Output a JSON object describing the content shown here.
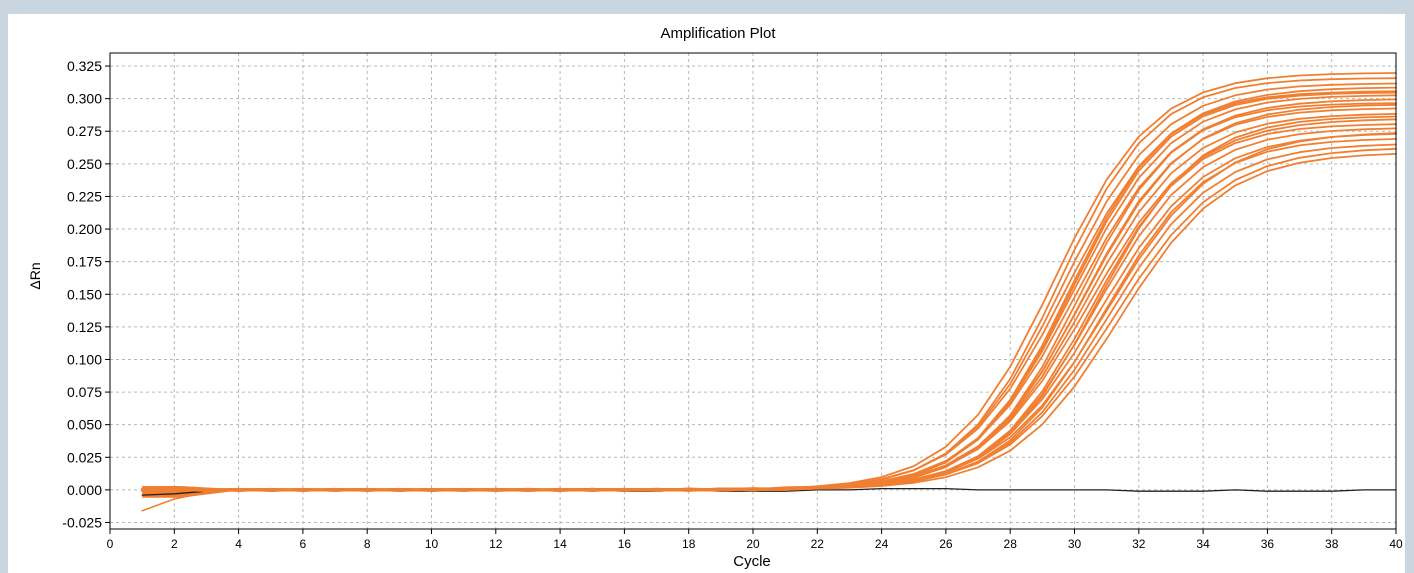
{
  "chart_data": {
    "type": "line",
    "title": "Amplification Plot",
    "xlabel": "Cycle",
    "ylabel": "ΔRn",
    "xlim": [
      0,
      40
    ],
    "ylim": [
      -0.03,
      0.335
    ],
    "grid": true,
    "x_ticks": [
      0,
      2,
      4,
      6,
      8,
      10,
      12,
      14,
      16,
      18,
      20,
      22,
      24,
      26,
      28,
      30,
      32,
      34,
      36,
      38,
      40
    ],
    "x_tick_labels": [
      "0",
      "2",
      "4",
      "6",
      "8",
      "10",
      "12",
      "14",
      "16",
      "18",
      "20",
      "22",
      "24",
      "26",
      "28",
      "30",
      "32",
      "34",
      "36",
      "38",
      "40"
    ],
    "y_ticks": [
      -0.025,
      0.0,
      0.025,
      0.05,
      0.075,
      0.1,
      0.125,
      0.15,
      0.175,
      0.2,
      0.225,
      0.25,
      0.275,
      0.3,
      0.325
    ],
    "y_tick_labels": [
      "-0.025",
      "0.000",
      "0.025",
      "0.050",
      "0.075",
      "0.100",
      "0.125",
      "0.150",
      "0.175",
      "0.200",
      "0.225",
      "0.250",
      "0.275",
      "0.300",
      "0.325"
    ],
    "colors": {
      "amplification": "#f07f32",
      "baseline": "#222222",
      "grid": "#b8b8b8",
      "axis": "#000000",
      "background": "#c9d6df"
    },
    "curve_params": {
      "plateaus": [
        0.32,
        0.316,
        0.312,
        0.309,
        0.306,
        0.303,
        0.3,
        0.297,
        0.293,
        0.289,
        0.285,
        0.281,
        0.278,
        0.274,
        0.27,
        0.266,
        0.263,
        0.259,
        0.305,
        0.296,
        0.287,
        0.275
      ],
      "midpoints": [
        29.35,
        29.5,
        29.62,
        29.75,
        29.85,
        29.95,
        30.05,
        30.15,
        30.25,
        30.35,
        30.45,
        30.55,
        30.65,
        30.78,
        30.9,
        31.05,
        31.2,
        31.35,
        29.9,
        30.3,
        30.7,
        31.0
      ],
      "slopes": [
        1.55,
        1.5,
        1.55,
        1.6,
        1.5,
        1.55,
        1.6,
        1.5,
        1.55,
        1.6,
        1.65,
        1.55,
        1.6,
        1.65,
        1.6,
        1.65,
        1.7,
        1.65,
        1.5,
        1.6,
        1.55,
        1.7
      ]
    },
    "baseline_series": {
      "name": "",
      "x": [
        1,
        2,
        3,
        4,
        5,
        6,
        7,
        8,
        9,
        10,
        11,
        12,
        13,
        14,
        15,
        16,
        17,
        18,
        19,
        20,
        21,
        22,
        23,
        24,
        25,
        26,
        27,
        28,
        29,
        30,
        31,
        32,
        33,
        34,
        35,
        36,
        37,
        38,
        39,
        40
      ],
      "y": [
        -0.004,
        -0.003,
        -0.001,
        0.0,
        0.0,
        0.0,
        0.0,
        0.0,
        0.001,
        0.0,
        0.0,
        0.0,
        0.0,
        0.0,
        0.0,
        -0.001,
        -0.001,
        0.0,
        -0.001,
        -0.001,
        -0.001,
        0.0,
        0.0,
        0.001,
        0.001,
        0.001,
        0.0,
        0.0,
        0.0,
        0.0,
        0.0,
        -0.001,
        -0.001,
        -0.001,
        0.0,
        -0.001,
        -0.001,
        -0.001,
        0.0,
        0.0
      ]
    },
    "low_start_series": {
      "name": "",
      "x": [
        1,
        2,
        3,
        4
      ],
      "y": [
        -0.016,
        -0.007,
        -0.002,
        0.0
      ]
    }
  }
}
